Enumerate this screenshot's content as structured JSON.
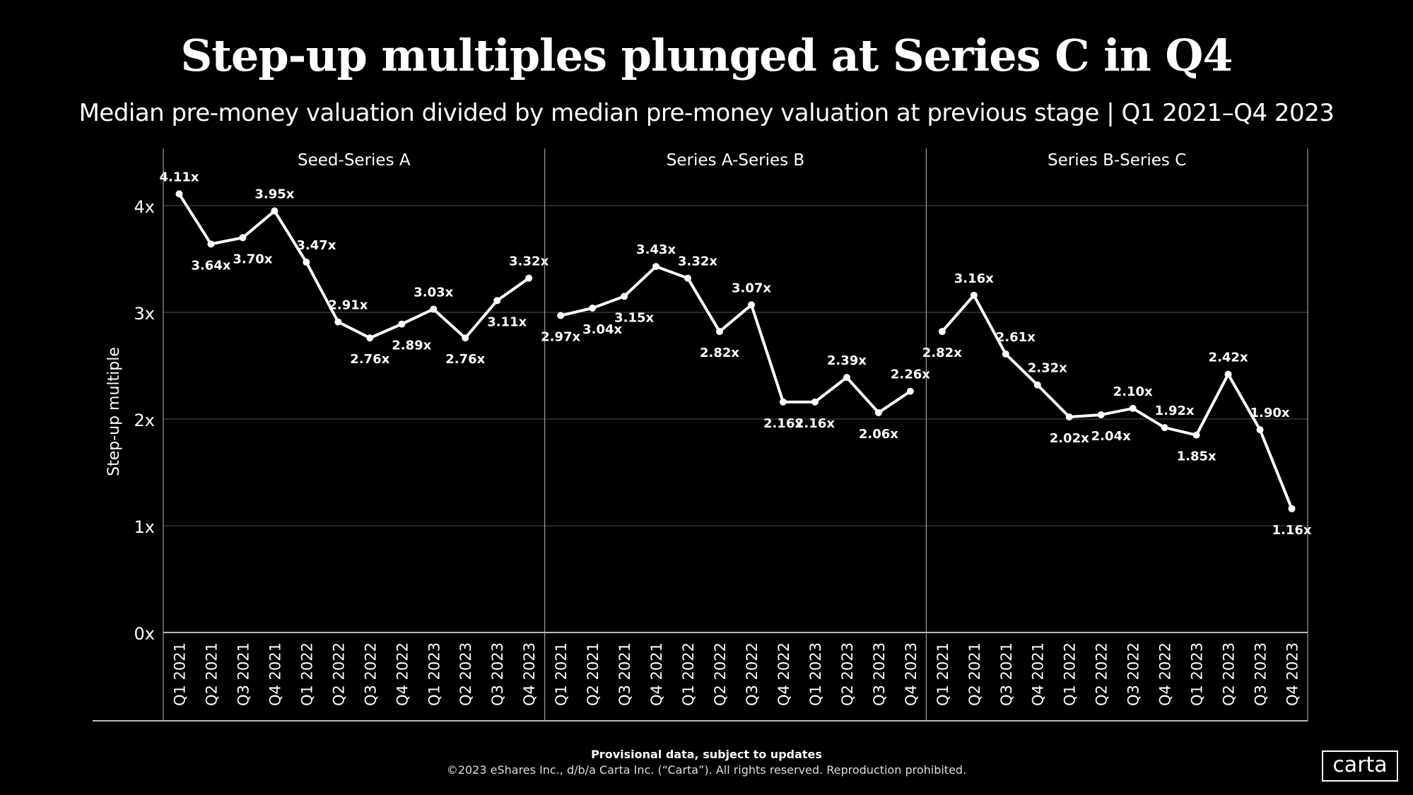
{
  "chart_data": {
    "type": "line",
    "title": "Step-up multiples plunged at Series C in Q4",
    "subtitle": "Median pre-money valuation divided by median pre-money valuation at previous stage | Q1 2021–Q4 2023",
    "ylabel": "Step-up multiple",
    "ylim": [
      0,
      4.4
    ],
    "yticks": [
      "0x",
      "1x",
      "2x",
      "3x",
      "4x"
    ],
    "grid": true,
    "categories": [
      "Q1 2021",
      "Q2 2021",
      "Q3 2021",
      "Q4 2021",
      "Q1 2022",
      "Q2 2022",
      "Q3 2022",
      "Q4 2022",
      "Q1 2023",
      "Q2 2023",
      "Q3 2023",
      "Q4 2023"
    ],
    "panels": [
      {
        "name": "Seed-Series A",
        "values": [
          4.11,
          3.64,
          3.7,
          3.95,
          3.47,
          2.91,
          2.76,
          2.89,
          3.03,
          2.76,
          3.11,
          3.32
        ],
        "labels": [
          "4.11x",
          "3.64x",
          "3.70x",
          "3.95x",
          "3.47x",
          "2.91x",
          "2.76x",
          "2.89x",
          "3.03x",
          "2.76x",
          "3.11x",
          "3.32x"
        ]
      },
      {
        "name": "Series A-Series B",
        "values": [
          2.97,
          3.04,
          3.15,
          3.43,
          3.32,
          2.82,
          3.07,
          2.16,
          2.16,
          2.39,
          2.06,
          2.26
        ],
        "labels": [
          "2.97x",
          "3.04x",
          "3.15x",
          "3.43x",
          "3.32x",
          "2.82x",
          "3.07x",
          "2.16x",
          "2.16x",
          "2.39x",
          "2.06x",
          "2.26x"
        ]
      },
      {
        "name": "Series B-Series C",
        "values": [
          2.82,
          3.16,
          2.61,
          2.32,
          2.02,
          2.04,
          2.1,
          1.92,
          1.85,
          2.42,
          1.9,
          1.16
        ],
        "labels": [
          "2.82x",
          "3.16x",
          "2.61x",
          "2.32x",
          "2.02x",
          "2.04x",
          "2.10x",
          "1.92x",
          "1.85x",
          "2.42x",
          "1.90x",
          "1.16x"
        ]
      }
    ],
    "line_color": "#ffffff",
    "background": "#000000"
  },
  "footer": {
    "note": "Provisional data, subject to updates",
    "copyright": "©2023 eShares Inc., d/b/a Carta Inc. (“Carta”). All rights reserved. Reproduction prohibited.",
    "logo": "carta"
  }
}
